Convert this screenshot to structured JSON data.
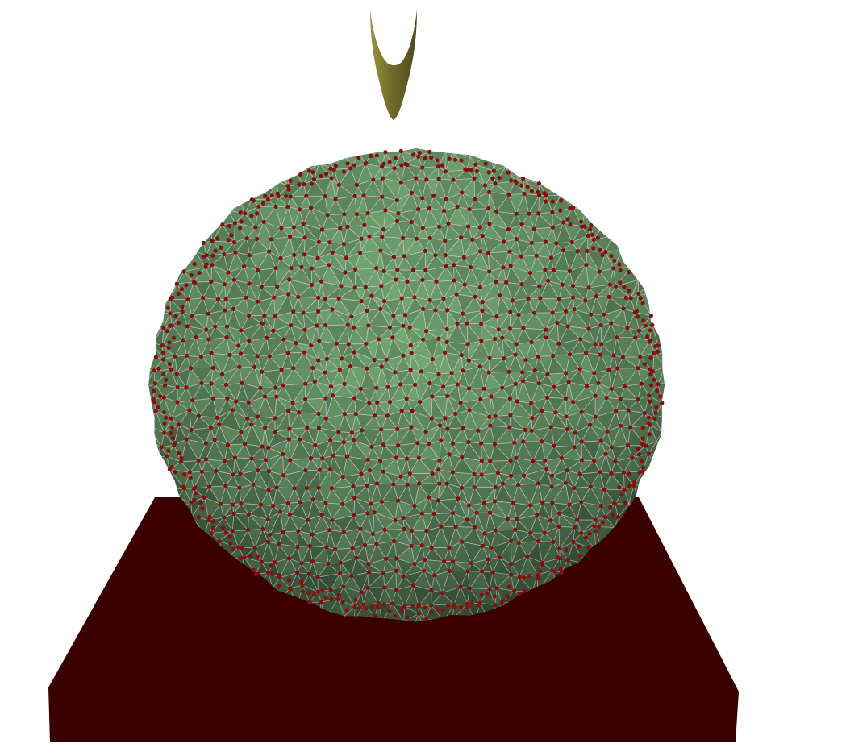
{
  "scene": {
    "background_color": "#ffffff",
    "objects": [
      {
        "kind": "indenter",
        "shape": "paraboloid-tip",
        "color": "#6f6a2a"
      },
      {
        "kind": "mesh-sphere",
        "shape": "triangulated-sphere",
        "face_color": "#5f8a5f",
        "edge_color": "#c9c9c9",
        "node_color": "#8a0d0d"
      },
      {
        "kind": "base-plate",
        "shape": "rectangular-slab",
        "color": "#3a0000"
      }
    ]
  }
}
